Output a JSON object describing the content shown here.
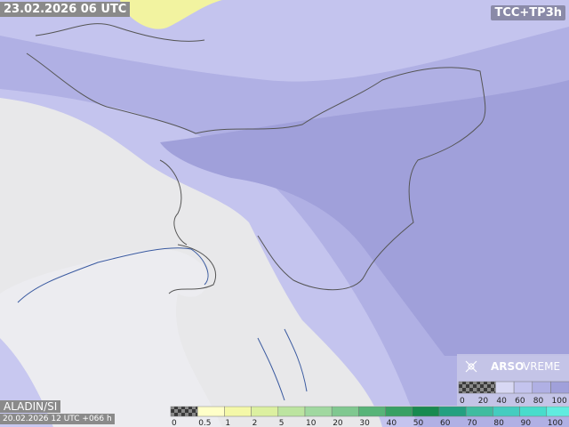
{
  "header": {
    "valid_time": "23.02.2026 06 UTC",
    "product": "TCC+TP3h"
  },
  "footer": {
    "model": "ALADIN/SI",
    "run": "20.02.2026 12 UTC +066 h"
  },
  "logo": {
    "brand": "ARSO",
    "product": "VREME"
  },
  "precip_legend": {
    "labels": [
      0,
      0.5,
      1,
      2,
      5,
      10,
      20,
      30,
      40,
      50,
      60,
      70,
      80,
      90,
      100
    ],
    "colors": [
      "checker",
      "#ffffc8",
      "#f4f8a8",
      "#dcf0a0",
      "#bce4a0",
      "#a0d8a0",
      "#80c890",
      "#58b478",
      "#38a064",
      "#188a50",
      "#24a080",
      "#40bca0",
      "#44ccc0",
      "#48dccc",
      "#60ece0"
    ]
  },
  "cloud_legend": {
    "labels": [
      0,
      20,
      40,
      60,
      80,
      100
    ],
    "colors": [
      "checker",
      "checker",
      "#d8d8f4",
      "#c4c4ee",
      "#b0b0e4",
      "#a0a0da"
    ]
  }
}
